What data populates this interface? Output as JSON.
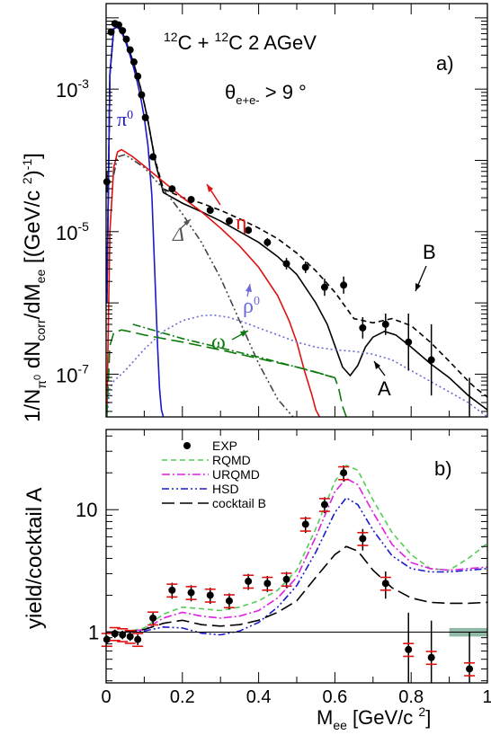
{
  "chart_data": [
    {
      "panel": "a)",
      "type": "line",
      "title": "12C + 12C 2 AGeV",
      "title_parts": {
        "sup1": "12",
        "el1": "C + ",
        "sup2": "12",
        "el2": "C  2 AGeV"
      },
      "cut_label": {
        "theta": "θ",
        "sub": "e+e-",
        "rest": " > 9 °"
      },
      "ylabel": "1/Nπ0 dNcorr/dMee [(GeV/c 2)-1]",
      "ylabel_parts": {
        "p1": "1/N",
        "s1": "π",
        "s1b": "0",
        "p2": " dN",
        "s2": "corr",
        "p3": "/dM",
        "s3": "ee",
        "p4": "  [(GeV/c ",
        "s4": "2",
        ")": ")",
        "s5": "-1",
        "p5": "]"
      },
      "yscale": "log",
      "xlim": [
        0,
        1
      ],
      "ylim_log10": [
        -7.6,
        -1.8
      ],
      "ytick_labels": [
        {
          "base": "10",
          "exp": "-3",
          "value": -3
        },
        {
          "base": "10",
          "exp": "-5",
          "value": -5
        },
        {
          "base": "10",
          "exp": "-7",
          "value": -7
        }
      ],
      "curve_labels": {
        "pi0": {
          "sym": "π",
          "sup": "0",
          "color": "#1a1acc"
        },
        "eta": {
          "sym": "η",
          "color": "#e01010"
        },
        "delta": {
          "sym": "Δ",
          "color": "#555555"
        },
        "rho0": {
          "sym": "ρ",
          "sup": "0",
          "color": "#6a6ad8"
        },
        "omega": {
          "sym": "ω",
          "color": "#0d7a0d"
        },
        "A": {
          "sym": "A",
          "color": "#000000"
        },
        "B": {
          "sym": "B",
          "color": "#000000"
        }
      },
      "series": [
        {
          "name": "EXP",
          "style": "points",
          "x": [
            0.002,
            0.013,
            0.023,
            0.033,
            0.043,
            0.053,
            0.063,
            0.073,
            0.083,
            0.093,
            0.103,
            0.123,
            0.173,
            0.223,
            0.273,
            0.323,
            0.373,
            0.423,
            0.473,
            0.523,
            0.573,
            0.623,
            0.673,
            0.733,
            0.793,
            0.853,
            0.953
          ],
          "y": [
            -4.3,
            -2.2,
            -2.08,
            -2.1,
            -2.18,
            -2.3,
            -2.45,
            -2.62,
            -2.82,
            -3.08,
            -3.4,
            -3.95,
            -4.4,
            -4.55,
            -4.7,
            -4.85,
            -4.98,
            -5.15,
            -5.45,
            -5.5,
            -5.78,
            -5.75,
            -6.35,
            -6.3,
            -6.55,
            -6.8,
            -7.65
          ],
          "yerr": [
            0.15,
            0.03,
            0.03,
            0.03,
            0.03,
            0.03,
            0.03,
            0.03,
            0.03,
            0.03,
            0.04,
            0.05,
            0.05,
            0.05,
            0.05,
            0.05,
            0.05,
            0.06,
            0.08,
            0.08,
            0.12,
            0.12,
            0.15,
            0.15,
            0.4,
            0.5,
            0.6
          ]
        },
        {
          "name": "cocktail A",
          "style": "solid",
          "color": "#000000",
          "x": [
            0.002,
            0.01,
            0.02,
            0.03,
            0.04,
            0.05,
            0.06,
            0.07,
            0.08,
            0.09,
            0.1,
            0.11,
            0.12,
            0.13,
            0.15,
            0.2,
            0.25,
            0.3,
            0.35,
            0.4,
            0.45,
            0.5,
            0.55,
            0.58,
            0.6,
            0.62,
            0.64,
            0.66,
            0.68,
            0.7,
            0.73,
            0.76,
            0.8,
            0.85,
            0.9,
            0.95,
            0.97,
            1.0
          ],
          "y": [
            -6.0,
            -2.8,
            -2.15,
            -2.12,
            -2.18,
            -2.3,
            -2.45,
            -2.6,
            -2.78,
            -2.98,
            -3.2,
            -3.45,
            -3.75,
            -4.05,
            -4.45,
            -4.6,
            -4.72,
            -4.85,
            -5.0,
            -5.15,
            -5.35,
            -5.6,
            -6.0,
            -6.3,
            -6.6,
            -6.9,
            -7.02,
            -6.88,
            -6.62,
            -6.48,
            -6.4,
            -6.45,
            -6.62,
            -6.85,
            -7.05,
            -7.3,
            -7.38,
            -7.5
          ]
        },
        {
          "name": "cocktail B",
          "style": "dashed",
          "color": "#000000",
          "x": [
            0.002,
            0.01,
            0.02,
            0.03,
            0.04,
            0.05,
            0.06,
            0.07,
            0.08,
            0.09,
            0.1,
            0.11,
            0.12,
            0.13,
            0.15,
            0.2,
            0.25,
            0.3,
            0.35,
            0.4,
            0.45,
            0.5,
            0.55,
            0.6,
            0.65,
            0.7,
            0.75,
            0.8,
            0.85,
            0.9,
            0.95,
            0.97,
            1.0
          ],
          "y": [
            -6.0,
            -2.8,
            -2.15,
            -2.12,
            -2.18,
            -2.3,
            -2.45,
            -2.6,
            -2.78,
            -2.98,
            -3.2,
            -3.45,
            -3.75,
            -4.02,
            -4.4,
            -4.52,
            -4.6,
            -4.7,
            -4.82,
            -4.95,
            -5.1,
            -5.3,
            -5.55,
            -5.85,
            -6.22,
            -6.28,
            -6.22,
            -6.32,
            -6.55,
            -6.82,
            -7.1,
            -7.2,
            -7.32
          ]
        },
        {
          "name": "π0",
          "style": "solid",
          "color": "#1a1acc",
          "x": [
            0.002,
            0.01,
            0.02,
            0.03,
            0.04,
            0.05,
            0.06,
            0.07,
            0.08,
            0.09,
            0.1,
            0.11,
            0.12,
            0.125,
            0.13,
            0.135,
            0.14,
            0.145,
            0.15
          ],
          "y": [
            -6.0,
            -2.8,
            -2.15,
            -2.13,
            -2.2,
            -2.32,
            -2.48,
            -2.66,
            -2.86,
            -3.1,
            -3.4,
            -3.8,
            -4.5,
            -5.2,
            -5.9,
            -6.6,
            -7.2,
            -7.5,
            -7.6
          ]
        },
        {
          "name": "η",
          "style": "solid",
          "color": "#e01010",
          "x": [
            0.002,
            0.01,
            0.02,
            0.03,
            0.04,
            0.05,
            0.07,
            0.1,
            0.15,
            0.2,
            0.25,
            0.3,
            0.35,
            0.4,
            0.45,
            0.48,
            0.5,
            0.52,
            0.54,
            0.55,
            0.56
          ],
          "y": [
            -7.6,
            -5.0,
            -4.1,
            -3.88,
            -3.85,
            -3.88,
            -3.95,
            -4.08,
            -4.3,
            -4.52,
            -4.72,
            -4.95,
            -5.2,
            -5.5,
            -5.9,
            -6.25,
            -6.55,
            -6.95,
            -7.3,
            -7.5,
            -7.6
          ]
        },
        {
          "name": "Δ",
          "style": "dashdotdot",
          "color": "#444444",
          "x": [
            0.02,
            0.03,
            0.05,
            0.1,
            0.15,
            0.2,
            0.25,
            0.3,
            0.35,
            0.4,
            0.45,
            0.49
          ],
          "y": [
            -4.2,
            -3.95,
            -3.92,
            -4.1,
            -4.4,
            -4.75,
            -5.15,
            -5.65,
            -6.25,
            -6.85,
            -7.35,
            -7.6
          ]
        },
        {
          "name": "ρ0",
          "style": "dotted",
          "color": "#6a6ad8",
          "x": [
            0.002,
            0.01,
            0.02,
            0.05,
            0.1,
            0.15,
            0.2,
            0.25,
            0.28,
            0.32,
            0.36,
            0.4,
            0.45,
            0.5,
            0.55,
            0.6,
            0.65,
            0.7,
            0.75,
            0.8,
            0.85,
            0.9,
            0.95,
            0.98,
            1.0
          ],
          "y": [
            -7.6,
            -7.2,
            -7.1,
            -6.95,
            -6.65,
            -6.4,
            -6.25,
            -6.18,
            -6.17,
            -6.2,
            -6.27,
            -6.35,
            -6.45,
            -6.55,
            -6.62,
            -6.66,
            -6.68,
            -6.72,
            -6.8,
            -6.95,
            -7.1,
            -7.25,
            -7.4,
            -7.52,
            -7.6
          ]
        },
        {
          "name": "ω",
          "style": "longdash",
          "color": "#0d7a0d",
          "x": [
            0.002,
            0.01,
            0.02,
            0.04,
            0.06,
            0.1,
            0.2,
            0.3,
            0.4,
            0.5,
            0.55,
            0.6,
            0.61,
            0.62,
            0.63
          ],
          "y": [
            -7.6,
            -6.6,
            -6.42,
            -6.38,
            -6.4,
            -6.45,
            -6.55,
            -6.66,
            -6.78,
            -6.9,
            -6.97,
            -7.05,
            -7.2,
            -7.45,
            -7.6
          ]
        },
        {
          "name": "ω dalitz",
          "style": "dashdot",
          "color": "#0d7a0d",
          "x": [
            0.07,
            0.2,
            0.3,
            0.4,
            0.5,
            0.6
          ],
          "y": [
            -6.3,
            -6.5,
            -6.63,
            -6.76,
            -6.9,
            -7.05
          ]
        }
      ]
    },
    {
      "panel": "b)",
      "type": "line",
      "xlabel": "Mee [GeV/c 2]",
      "xlabel_parts": {
        "m": "M",
        "s": "ee",
        "u": " [GeV/c ",
        "e": "2",
        "c": "]"
      },
      "ylabel": "yield/cocktail A",
      "yscale": "log",
      "xlim": [
        0,
        1
      ],
      "ylim_log10": [
        -0.415,
        1.655
      ],
      "ytick_labels": [
        {
          "label": "1",
          "value": 0
        },
        {
          "label": "10",
          "value": 1
        }
      ],
      "xtick_labels": [
        "0",
        "0.2",
        "0.4",
        "0.6",
        "0.8",
        "1"
      ],
      "legend": {
        "placement": "top-center",
        "items": [
          {
            "label": "EXP",
            "marker": "point",
            "color": "#000000"
          },
          {
            "label": "RQMD",
            "style": "dashed",
            "color": "#55cc55"
          },
          {
            "label": "URQMD",
            "style": "dashdot",
            "color": "#e020e0"
          },
          {
            "label": "HSD",
            "style": "dashdotdot",
            "color": "#1a1acc"
          },
          {
            "label": "cocktail B",
            "style": "longdash",
            "color": "#000000"
          }
        ]
      },
      "series": [
        {
          "name": "EXP",
          "style": "points",
          "x": [
            0.002,
            0.023,
            0.043,
            0.063,
            0.083,
            0.123,
            0.173,
            0.223,
            0.273,
            0.323,
            0.373,
            0.423,
            0.473,
            0.523,
            0.573,
            0.623,
            0.673,
            0.733,
            0.793,
            0.853,
            0.953
          ],
          "y": [
            0.87,
            0.97,
            0.95,
            0.92,
            0.87,
            1.3,
            2.2,
            2.1,
            2.0,
            1.8,
            2.6,
            2.5,
            2.7,
            7.6,
            11.0,
            20.0,
            5.8,
            2.5,
            0.72,
            0.62,
            0.5
          ],
          "yerr_frac": [
            0.08,
            0.08,
            0.08,
            0.08,
            0.1,
            0.12,
            0.15,
            0.15,
            0.15,
            0.15,
            0.15,
            0.15,
            0.15,
            0.15,
            0.15,
            0.15,
            0.2,
            0.25,
            1.0,
            1.0,
            1.0
          ]
        },
        {
          "name": "RQMD",
          "style": "dashed",
          "color": "#55cc55",
          "x": [
            0,
            0.05,
            0.1,
            0.15,
            0.2,
            0.25,
            0.3,
            0.35,
            0.4,
            0.45,
            0.5,
            0.55,
            0.6,
            0.63,
            0.66,
            0.7,
            0.75,
            0.8,
            0.85,
            0.9,
            0.95,
            1.0
          ],
          "y": [
            1.0,
            1.0,
            1.08,
            1.4,
            1.6,
            1.55,
            1.5,
            1.6,
            1.8,
            2.2,
            3.2,
            7.0,
            17.0,
            23.0,
            21.0,
            12.0,
            6.5,
            4.3,
            3.3,
            3.2,
            4.0,
            5.3
          ]
        },
        {
          "name": "URQMD",
          "style": "dashdot",
          "color": "#e020e0",
          "x": [
            0,
            0.05,
            0.1,
            0.15,
            0.2,
            0.25,
            0.3,
            0.35,
            0.4,
            0.45,
            0.5,
            0.55,
            0.6,
            0.63,
            0.66,
            0.7,
            0.75,
            0.8,
            0.85,
            0.9,
            0.95,
            1.0
          ],
          "y": [
            1.0,
            1.0,
            1.05,
            1.3,
            1.45,
            1.35,
            1.3,
            1.35,
            1.5,
            1.9,
            2.8,
            6.0,
            14.0,
            18.0,
            16.0,
            9.5,
            5.2,
            3.7,
            3.3,
            3.2,
            3.3,
            3.4
          ]
        },
        {
          "name": "HSD",
          "style": "dashdotdot",
          "color": "#1a1acc",
          "x": [
            0,
            0.05,
            0.1,
            0.15,
            0.2,
            0.25,
            0.3,
            0.35,
            0.4,
            0.45,
            0.5,
            0.55,
            0.6,
            0.63,
            0.66,
            0.7,
            0.75,
            0.8,
            0.85,
            0.9,
            0.95,
            1.0
          ],
          "y": [
            1.0,
            1.0,
            1.02,
            1.1,
            1.08,
            0.98,
            0.95,
            1.02,
            1.2,
            1.6,
            2.4,
            4.5,
            9.5,
            12.5,
            11.0,
            6.8,
            4.2,
            3.3,
            3.1,
            3.1,
            3.2,
            3.3
          ]
        },
        {
          "name": "cocktail B",
          "style": "longdash",
          "color": "#000000",
          "x": [
            0,
            0.05,
            0.1,
            0.15,
            0.2,
            0.25,
            0.3,
            0.35,
            0.4,
            0.45,
            0.5,
            0.55,
            0.6,
            0.63,
            0.66,
            0.7,
            0.75,
            0.8,
            0.85,
            0.9,
            0.95,
            1.0
          ],
          "y": [
            1.0,
            1.0,
            1.05,
            1.18,
            1.25,
            1.15,
            1.12,
            1.15,
            1.25,
            1.45,
            1.8,
            2.8,
            4.3,
            5.0,
            4.6,
            3.2,
            2.3,
            1.9,
            1.75,
            1.72,
            1.72,
            1.75
          ]
        },
        {
          "name": "unity",
          "style": "thin",
          "color": "#000000",
          "x": [
            0,
            1
          ],
          "y": [
            1,
            1
          ]
        }
      ],
      "band": {
        "x": [
          0.9,
          1.0
        ],
        "y": [
          0.92,
          1.08
        ],
        "color": "#8fb8a6"
      }
    }
  ],
  "tick_label_a_panel": {
    "label": "a)"
  },
  "tick_label_b_panel": {
    "label": "b)"
  }
}
